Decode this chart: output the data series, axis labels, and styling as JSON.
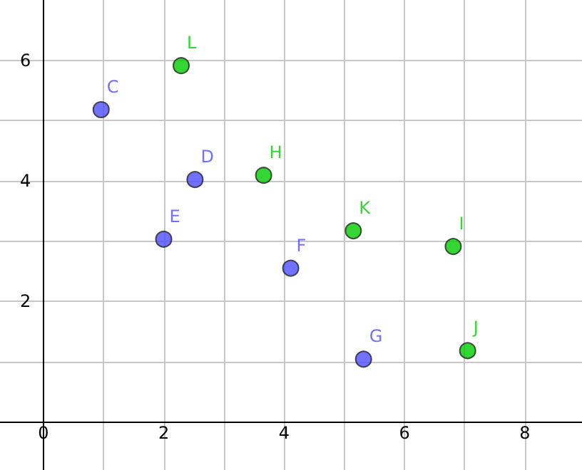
{
  "chart_data": {
    "type": "scatter",
    "series": [
      {
        "color": "#4d4dff",
        "x": [
          0.96,
          2.52,
          2.0,
          4.11,
          5.32
        ],
        "values": [
          5.18,
          4.02,
          3.03,
          2.55,
          1.04
        ],
        "value_labels": [
          "C",
          "D",
          "E",
          "F",
          "G"
        ]
      },
      {
        "color": "#00cc00",
        "x": [
          2.29,
          3.66,
          5.15,
          6.81,
          7.05
        ],
        "values": [
          5.91,
          4.09,
          3.17,
          2.91,
          1.18
        ],
        "value_labels": [
          "L",
          "H",
          "K",
          "I",
          "J"
        ]
      }
    ],
    "xlim": [
      -0.72,
      8.95
    ],
    "ylim": [
      -0.8,
      7.0
    ],
    "xticks": [
      0,
      {
        "value": 1,
        "label": null
      },
      2,
      {
        "value": 3,
        "label": null
      },
      4,
      {
        "value": 5,
        "label": null
      },
      6,
      {
        "value": 7,
        "label": null
      },
      8
    ],
    "yticks": [
      {
        "value": 0,
        "label": null
      },
      {
        "value": 1,
        "label": null
      },
      2,
      {
        "value": 3,
        "label": null
      },
      4,
      {
        "value": 5,
        "label": null
      },
      6
    ],
    "grid": true,
    "marker": "circle"
  }
}
